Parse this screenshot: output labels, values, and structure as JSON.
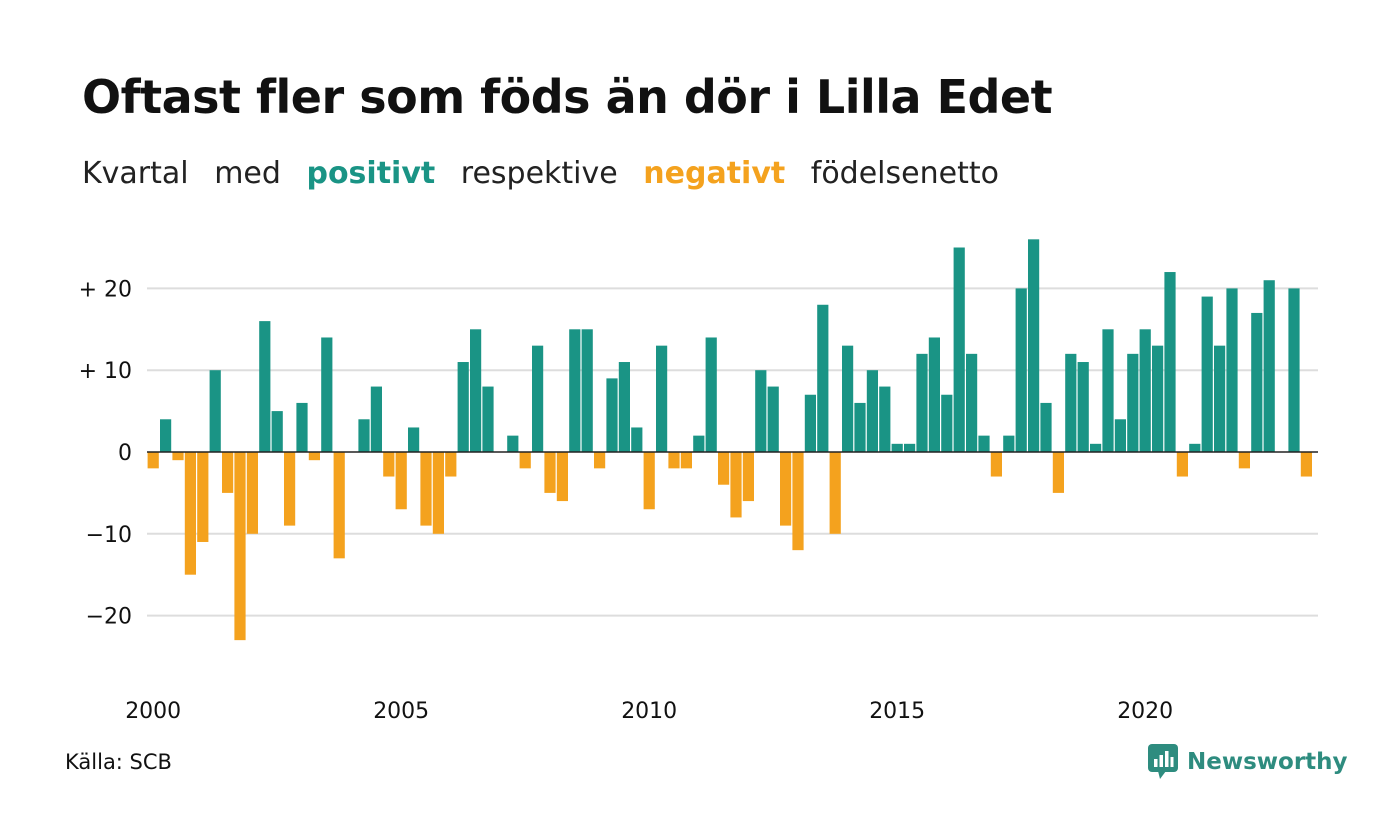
{
  "title": "Oftast fler som föds än dör i Lilla Edet",
  "subtitle": {
    "parts": [
      "Kvartal",
      "med",
      "positivt",
      "respektive",
      "negativt",
      "födelsenetto"
    ]
  },
  "colors": {
    "positive": "#1a9485",
    "negative": "#f4a21e",
    "grid": "#dddddd",
    "zero_line": "#222222"
  },
  "source": "Källa: SCB",
  "brand": {
    "name": "Newsworthy",
    "logo_icon": "newsworthy-chart-bubble-icon"
  },
  "chart_data": {
    "type": "bar",
    "title": "Oftast fler som föds än dör i Lilla Edet",
    "subtitle": "Kvartal med positivt respektive negativt födelsenetto",
    "x_start": "2000 Q1",
    "x_ticks": [
      "2000",
      "2005",
      "2010",
      "2015",
      "2020"
    ],
    "y_ticks": [
      {
        "value": 20,
        "label": "+ 20"
      },
      {
        "value": 10,
        "label": "+ 10"
      },
      {
        "value": 0,
        "label": "0"
      },
      {
        "value": -10,
        "label": "−10"
      },
      {
        "value": -20,
        "label": "−20"
      }
    ],
    "ylim": [
      -25,
      28
    ],
    "grid": true,
    "values": [
      -2,
      4,
      -1,
      -15,
      -11,
      10,
      -5,
      -23,
      -10,
      16,
      5,
      -9,
      6,
      -1,
      14,
      -13,
      0,
      4,
      8,
      -3,
      -7,
      3,
      -9,
      -10,
      -3,
      11,
      15,
      8,
      0,
      2,
      -2,
      13,
      -5,
      -6,
      15,
      15,
      -2,
      9,
      11,
      3,
      -7,
      13,
      -2,
      -2,
      2,
      14,
      -4,
      -8,
      -6,
      10,
      8,
      -9,
      -12,
      7,
      18,
      -10,
      13,
      6,
      10,
      8,
      1,
      1,
      12,
      14,
      7,
      25,
      12,
      2,
      -3,
      2,
      20,
      26,
      6,
      -5,
      12,
      11,
      1,
      15,
      4,
      12,
      15,
      13,
      22,
      -3,
      1,
      19,
      13,
      20,
      -2,
      17,
      21,
      0,
      20,
      -3
    ]
  }
}
